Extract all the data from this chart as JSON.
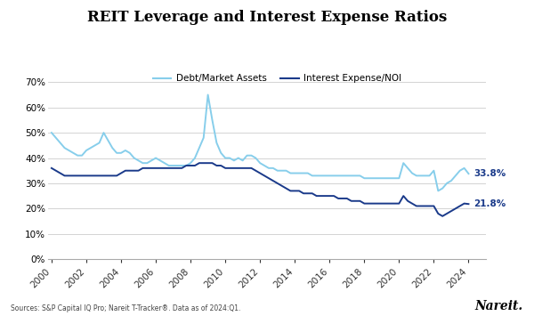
{
  "title": "REIT Leverage and Interest Expense Ratios",
  "source_text": "Sources: S&P Capital IQ Pro; Nareit T-Tracker®. Data as of 2024:Q1.",
  "nareit_text": "Nareit.",
  "legend_labels": [
    "Debt/Market Assets",
    "Interest Expense/NOI"
  ],
  "line1_color": "#87CEEB",
  "line2_color": "#1a3a8a",
  "label1_value": "33.8%",
  "label2_value": "21.8%",
  "ylim": [
    0,
    0.75
  ],
  "yticks": [
    0.0,
    0.1,
    0.2,
    0.3,
    0.4,
    0.5,
    0.6,
    0.7
  ],
  "background_color": "#ffffff",
  "xlim_min": 1999.8,
  "xlim_max": 2025.0,
  "debt_market_assets": {
    "years": [
      2000.0,
      2000.25,
      2000.5,
      2000.75,
      2001.0,
      2001.25,
      2001.5,
      2001.75,
      2002.0,
      2002.25,
      2002.5,
      2002.75,
      2003.0,
      2003.25,
      2003.5,
      2003.75,
      2004.0,
      2004.25,
      2004.5,
      2004.75,
      2005.0,
      2005.25,
      2005.5,
      2005.75,
      2006.0,
      2006.25,
      2006.5,
      2006.75,
      2007.0,
      2007.25,
      2007.5,
      2007.75,
      2008.0,
      2008.25,
      2008.5,
      2008.75,
      2009.0,
      2009.25,
      2009.5,
      2009.75,
      2010.0,
      2010.25,
      2010.5,
      2010.75,
      2011.0,
      2011.25,
      2011.5,
      2011.75,
      2012.0,
      2012.25,
      2012.5,
      2012.75,
      2013.0,
      2013.25,
      2013.5,
      2013.75,
      2014.0,
      2014.25,
      2014.5,
      2014.75,
      2015.0,
      2015.25,
      2015.5,
      2015.75,
      2016.0,
      2016.25,
      2016.5,
      2016.75,
      2017.0,
      2017.25,
      2017.5,
      2017.75,
      2018.0,
      2018.25,
      2018.5,
      2018.75,
      2019.0,
      2019.25,
      2019.5,
      2019.75,
      2020.0,
      2020.25,
      2020.5,
      2020.75,
      2021.0,
      2021.25,
      2021.5,
      2021.75,
      2022.0,
      2022.25,
      2022.5,
      2022.75,
      2023.0,
      2023.25,
      2023.5,
      2023.75,
      2024.0
    ],
    "values": [
      0.5,
      0.48,
      0.46,
      0.44,
      0.43,
      0.42,
      0.41,
      0.41,
      0.43,
      0.44,
      0.45,
      0.46,
      0.5,
      0.47,
      0.44,
      0.42,
      0.42,
      0.43,
      0.42,
      0.4,
      0.39,
      0.38,
      0.38,
      0.39,
      0.4,
      0.39,
      0.38,
      0.37,
      0.37,
      0.37,
      0.37,
      0.37,
      0.38,
      0.4,
      0.44,
      0.48,
      0.65,
      0.55,
      0.46,
      0.42,
      0.4,
      0.4,
      0.39,
      0.4,
      0.39,
      0.41,
      0.41,
      0.4,
      0.38,
      0.37,
      0.36,
      0.36,
      0.35,
      0.35,
      0.35,
      0.34,
      0.34,
      0.34,
      0.34,
      0.34,
      0.33,
      0.33,
      0.33,
      0.33,
      0.33,
      0.33,
      0.33,
      0.33,
      0.33,
      0.33,
      0.33,
      0.33,
      0.32,
      0.32,
      0.32,
      0.32,
      0.32,
      0.32,
      0.32,
      0.32,
      0.32,
      0.38,
      0.36,
      0.34,
      0.33,
      0.33,
      0.33,
      0.33,
      0.35,
      0.27,
      0.28,
      0.3,
      0.31,
      0.33,
      0.35,
      0.36,
      0.338
    ]
  },
  "interest_expense_noi": {
    "years": [
      2000.0,
      2000.25,
      2000.5,
      2000.75,
      2001.0,
      2001.25,
      2001.5,
      2001.75,
      2002.0,
      2002.25,
      2002.5,
      2002.75,
      2003.0,
      2003.25,
      2003.5,
      2003.75,
      2004.0,
      2004.25,
      2004.5,
      2004.75,
      2005.0,
      2005.25,
      2005.5,
      2005.75,
      2006.0,
      2006.25,
      2006.5,
      2006.75,
      2007.0,
      2007.25,
      2007.5,
      2007.75,
      2008.0,
      2008.25,
      2008.5,
      2008.75,
      2009.0,
      2009.25,
      2009.5,
      2009.75,
      2010.0,
      2010.25,
      2010.5,
      2010.75,
      2011.0,
      2011.25,
      2011.5,
      2011.75,
      2012.0,
      2012.25,
      2012.5,
      2012.75,
      2013.0,
      2013.25,
      2013.5,
      2013.75,
      2014.0,
      2014.25,
      2014.5,
      2014.75,
      2015.0,
      2015.25,
      2015.5,
      2015.75,
      2016.0,
      2016.25,
      2016.5,
      2016.75,
      2017.0,
      2017.25,
      2017.5,
      2017.75,
      2018.0,
      2018.25,
      2018.5,
      2018.75,
      2019.0,
      2019.25,
      2019.5,
      2019.75,
      2020.0,
      2020.25,
      2020.5,
      2020.75,
      2021.0,
      2021.25,
      2021.5,
      2021.75,
      2022.0,
      2022.25,
      2022.5,
      2022.75,
      2023.0,
      2023.25,
      2023.5,
      2023.75,
      2024.0
    ],
    "values": [
      0.36,
      0.35,
      0.34,
      0.33,
      0.33,
      0.33,
      0.33,
      0.33,
      0.33,
      0.33,
      0.33,
      0.33,
      0.33,
      0.33,
      0.33,
      0.33,
      0.34,
      0.35,
      0.35,
      0.35,
      0.35,
      0.36,
      0.36,
      0.36,
      0.36,
      0.36,
      0.36,
      0.36,
      0.36,
      0.36,
      0.36,
      0.37,
      0.37,
      0.37,
      0.38,
      0.38,
      0.38,
      0.38,
      0.37,
      0.37,
      0.36,
      0.36,
      0.36,
      0.36,
      0.36,
      0.36,
      0.36,
      0.35,
      0.34,
      0.33,
      0.32,
      0.31,
      0.3,
      0.29,
      0.28,
      0.27,
      0.27,
      0.27,
      0.26,
      0.26,
      0.26,
      0.25,
      0.25,
      0.25,
      0.25,
      0.25,
      0.24,
      0.24,
      0.24,
      0.23,
      0.23,
      0.23,
      0.22,
      0.22,
      0.22,
      0.22,
      0.22,
      0.22,
      0.22,
      0.22,
      0.22,
      0.25,
      0.23,
      0.22,
      0.21,
      0.21,
      0.21,
      0.21,
      0.21,
      0.18,
      0.17,
      0.18,
      0.19,
      0.2,
      0.21,
      0.22,
      0.218
    ]
  }
}
